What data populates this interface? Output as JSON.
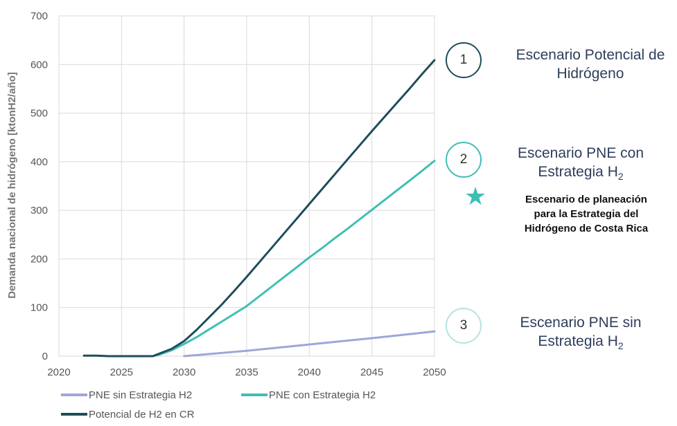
{
  "chart_data": {
    "type": "line",
    "ylabel": "Demanda nacional de hidrógeno [ktonH2/año]",
    "xlabel": "",
    "xlim": [
      2020,
      2050
    ],
    "ylim": [
      0,
      700
    ],
    "xticks": [
      "2020",
      "2025",
      "2030",
      "2035",
      "2040",
      "2045",
      "2050"
    ],
    "yticks": [
      "0",
      "100",
      "200",
      "300",
      "400",
      "500",
      "600",
      "700"
    ],
    "grid": true,
    "legend_position": "bottom-left",
    "series": [
      {
        "name": "PNE sin Estrategia H2",
        "color": "#9ea6d8",
        "x": [
          2030,
          2035,
          2040,
          2045,
          2050
        ],
        "y": [
          0,
          11,
          24,
          37,
          51
        ]
      },
      {
        "name": "PNE con Estrategia H2",
        "color": "#3fbfb3",
        "x": [
          2027.5,
          2028,
          2029,
          2030,
          2031,
          2032,
          2033,
          2034,
          2035,
          2036,
          2037,
          2038,
          2039,
          2040,
          2041,
          2042,
          2043,
          2044,
          2045,
          2046,
          2047,
          2048,
          2049,
          2050
        ],
        "y": [
          0,
          3,
          12,
          25,
          39,
          55,
          71,
          87,
          103,
          123,
          143,
          163,
          183,
          203,
          222,
          242,
          261,
          281,
          301,
          321,
          341,
          361,
          381,
          402
        ]
      },
      {
        "name": "Potencial de H2 en CR",
        "color": "#1e4d5a",
        "x": [
          2022,
          2023,
          2024,
          2025,
          2026,
          2027,
          2027.5,
          2028,
          2029,
          2030,
          2031,
          2032,
          2033,
          2034,
          2035,
          2036,
          2037,
          2038,
          2039,
          2040,
          2041,
          2042,
          2043,
          2044,
          2045,
          2046,
          2047,
          2048,
          2049,
          2050
        ],
        "y": [
          1,
          1,
          0,
          0,
          0,
          0,
          0,
          5,
          15,
          31,
          54,
          80,
          106,
          134,
          163,
          193,
          223,
          253,
          283,
          313,
          343,
          373,
          403,
          433,
          463,
          492,
          521,
          550,
          580,
          609
        ]
      }
    ]
  },
  "scenarios": [
    {
      "number": "1",
      "line1": "Escenario Potencial de",
      "line2": "Hidrógeno",
      "circle_color": "#1e4d5a"
    },
    {
      "number": "2",
      "line1": "Escenario PNE con",
      "line2_text": "Estrategia H",
      "line2_sub": "2",
      "circle_color": "#3fbfb3"
    },
    {
      "number": "3",
      "line1": "Escenario PNE sin",
      "line2_text": "Estrategia H",
      "line2_sub": "2",
      "circle_color": "#b5e3df"
    }
  ],
  "note": {
    "line1": "Escenario de planeación",
    "line2": "para la Estrategia del",
    "line3": "Hidrógeno de Costa Rica",
    "star_color": "#3fbfb3"
  }
}
